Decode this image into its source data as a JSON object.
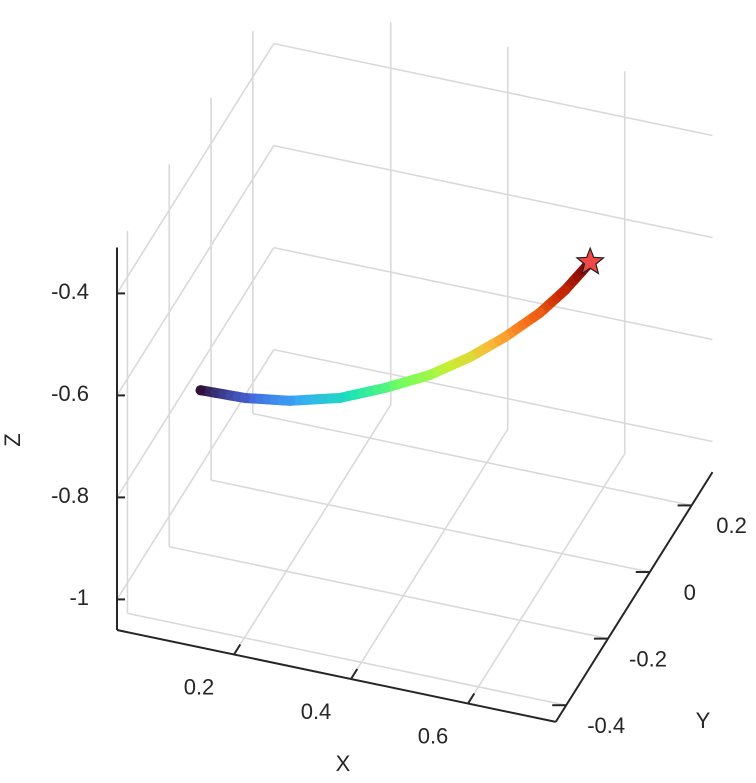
{
  "chart_data": {
    "type": "line3d",
    "xlabel": "X",
    "ylabel": "Y",
    "zlabel": "Z",
    "xlim": [
      0,
      0.75
    ],
    "ylim": [
      -0.45,
      0.3
    ],
    "zlim": [
      -1.06,
      -0.31
    ],
    "xticks": [
      0.2,
      0.4,
      0.6
    ],
    "yticks": [
      -0.4,
      -0.2,
      0,
      0.2
    ],
    "zticks": [
      -1,
      -0.8,
      -0.6,
      -0.4
    ],
    "grid": true,
    "x": [
      0,
      0.076,
      0.153,
      0.238,
      0.315,
      0.392,
      0.461,
      0.52,
      0.58,
      0.623,
      0.666
    ],
    "y": [
      -0.05,
      -0.05,
      -0.05,
      -0.05,
      -0.05,
      -0.05,
      -0.05,
      -0.05,
      -0.05,
      -0.05,
      -0.05
    ],
    "z": [
      -0.851,
      -0.848,
      -0.835,
      -0.809,
      -0.771,
      -0.727,
      -0.675,
      -0.622,
      -0.56,
      -0.505,
      -0.44
    ],
    "colormap": [
      "#30123b",
      "#4662d7",
      "#36aaf9",
      "#1ae4b6",
      "#72fe5e",
      "#c7ef34",
      "#faba39",
      "#f66b19",
      "#ca2a04",
      "#7a0403"
    ],
    "end_marker": "star",
    "end_marker_color": "#f04848"
  }
}
